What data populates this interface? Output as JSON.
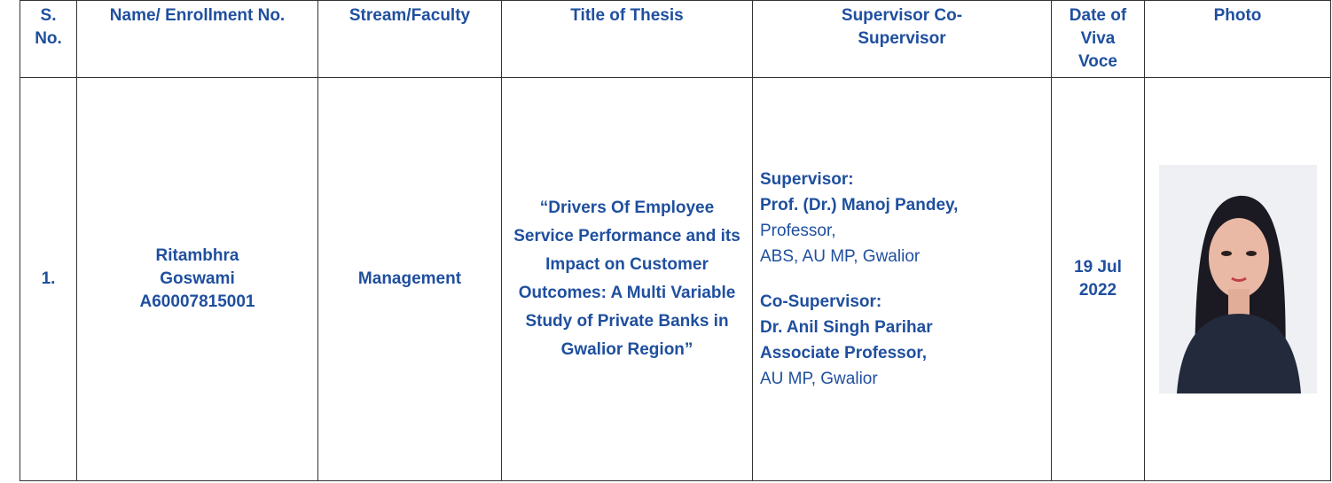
{
  "table": {
    "headers": [
      "S. No.",
      "Name/ Enrollment No.",
      "Stream/Faculty",
      "Title of Thesis",
      "Supervisor Co-Supervisor",
      "Date of Viva Voce",
      "Photo"
    ],
    "rows": [
      {
        "serial": "1.",
        "name": "Ritambhra Goswami",
        "enrollment": "A60007815001",
        "stream": "Management",
        "thesis_title": "“Drivers Of Employee Service Performance and its Impact on Customer Outcomes: A Multi Variable Study of Private Banks in Gwalior Region”",
        "supervisor": {
          "label": "Supervisor:",
          "name": "Prof. (Dr.) Manoj Pandey,",
          "designation": "Professor,",
          "affiliation": "ABS, AU MP, Gwalior"
        },
        "co_supervisor": {
          "label": "Co-Supervisor:",
          "name": "Dr. Anil Singh Parihar",
          "designation": "Associate Professor,",
          "affiliation": "AU MP, Gwalior"
        },
        "viva_date": "19 Jul 2022"
      }
    ]
  }
}
